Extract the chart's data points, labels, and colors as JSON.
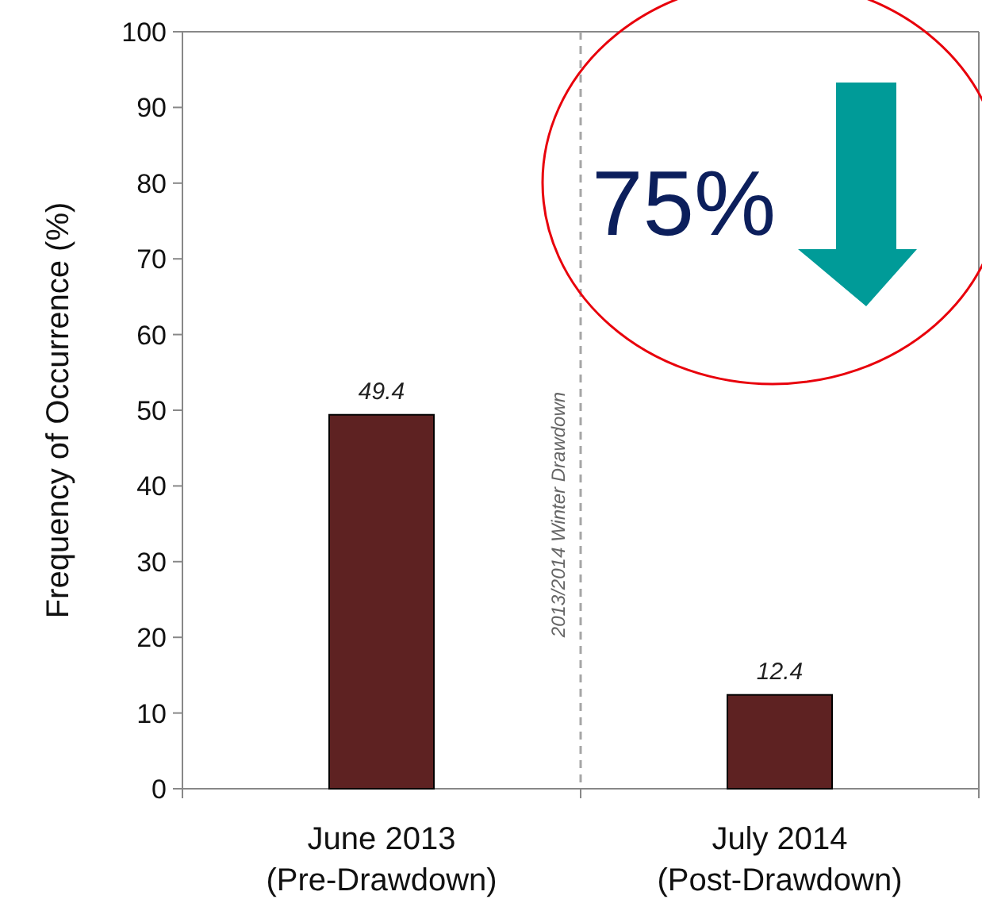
{
  "chart_data": {
    "type": "bar",
    "ylabel": "Frequency of Occurrence (%)",
    "categories": [
      "June 2013\n(Pre-Drawdown)",
      "July 2014\n(Post-Drawdown)"
    ],
    "values": [
      49.4,
      12.4
    ],
    "color": "#5e2222",
    "data_labels": true,
    "ylim": [
      0,
      100
    ],
    "yticks": [
      0,
      10,
      20,
      30,
      40,
      50,
      60,
      70,
      80,
      90,
      100
    ],
    "grid": false,
    "annotations": [
      "2013/2014 Winter Drawdown",
      "75%"
    ]
  }
}
